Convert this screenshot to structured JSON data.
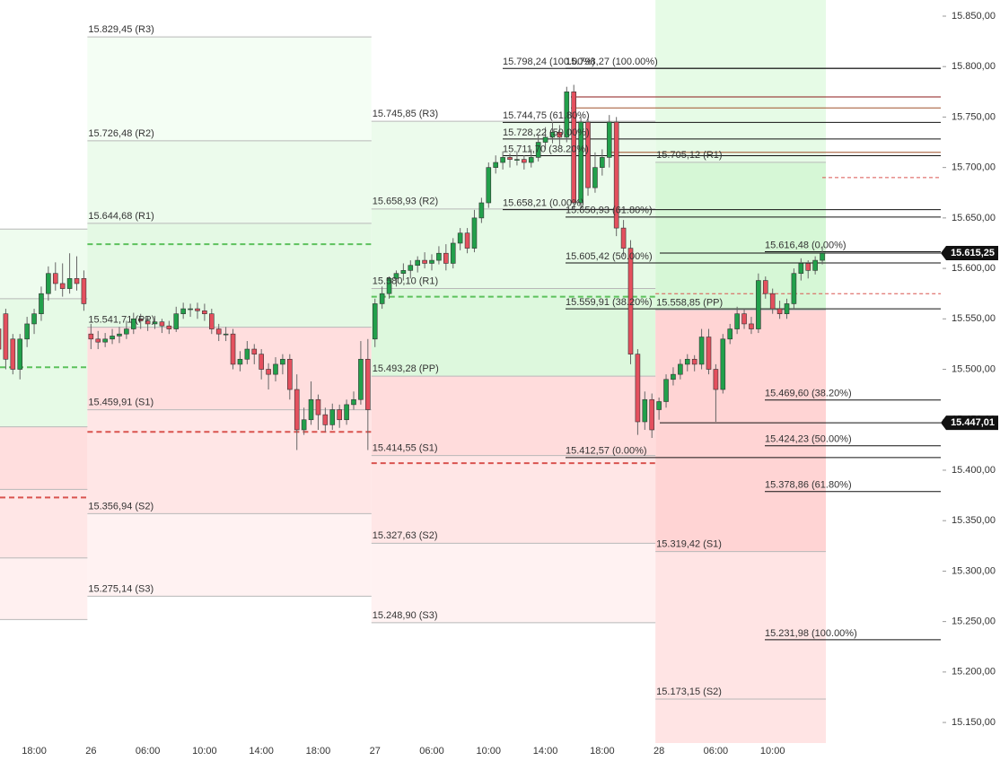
{
  "chart_data": {
    "type": "candlestick",
    "categories": [
      null,
      null,
      null,
      null,
      null,
      "18:00",
      null,
      null,
      null,
      null,
      null,
      null,
      null,
      "26",
      null,
      null,
      null,
      null,
      null,
      null,
      null,
      "06:00",
      null,
      null,
      null,
      null,
      null,
      null,
      null,
      "10:00",
      null,
      null,
      null,
      null,
      null,
      null,
      null,
      "14:00",
      null,
      null,
      null,
      null,
      null,
      null,
      null,
      "18:00",
      null,
      null,
      null,
      null,
      null,
      null,
      null,
      "27",
      null,
      null,
      null,
      null,
      null,
      null,
      null,
      "06:00",
      null,
      null,
      null,
      null,
      null,
      null,
      null,
      "10:00",
      null,
      null,
      null,
      null,
      null,
      null,
      null,
      "14:00",
      null,
      null,
      null,
      null,
      null,
      null,
      null,
      "18:00",
      null,
      null,
      null,
      null,
      null,
      null,
      null,
      "28",
      null,
      null,
      null,
      null,
      null,
      null,
      null,
      "06:00",
      null,
      null,
      null,
      null,
      null,
      null,
      null,
      "10:00",
      null,
      null,
      null,
      null,
      null,
      null,
      null
    ],
    "open": [
      15540,
      15555,
      15530,
      15500,
      15530,
      15545,
      15555,
      15575,
      15595,
      15585,
      15580,
      15590,
      15590,
      15535,
      15530,
      15527,
      15530,
      15533,
      15535,
      15540,
      15550,
      15548,
      15545,
      15547,
      15543,
      15540,
      15555,
      15560,
      15560,
      15558,
      15555,
      15540,
      15535,
      15535,
      15505,
      15510,
      15520,
      15515,
      15500,
      15495,
      15505,
      15510,
      15480,
      15440,
      15450,
      15470,
      15455,
      15445,
      15460,
      15450,
      15465,
      15470,
      15510,
      15530,
      15565,
      15575,
      15590,
      15595,
      15598,
      15603,
      15608,
      15605,
      15608,
      15615,
      15605,
      15625,
      15635,
      15620,
      15650,
      15665,
      15700,
      15705,
      15710,
      15708,
      15708,
      15705,
      15710,
      15725,
      15730,
      15735,
      15730,
      15775,
      15665,
      15745,
      15680,
      15700,
      15710,
      15745,
      15640,
      15620,
      15515,
      15448,
      15470,
      15460,
      15468,
      15490,
      15495,
      15505,
      15510,
      15505,
      15532,
      15500,
      15480,
      15530,
      15540,
      15555,
      15545,
      15540,
      15588,
      15575,
      15560,
      15555,
      15565,
      15595,
      15605,
      15598,
      15608
    ],
    "high": [
      15548,
      15560,
      15535,
      15535,
      15552,
      15560,
      15582,
      15602,
      15606,
      15605,
      15615,
      15612,
      15598,
      15545,
      15538,
      15536,
      15540,
      15542,
      15548,
      15556,
      15555,
      15552,
      15553,
      15550,
      15548,
      15562,
      15566,
      15565,
      15566,
      15565,
      15560,
      15545,
      15542,
      15540,
      15518,
      15528,
      15525,
      15520,
      15506,
      15512,
      15515,
      15515,
      15495,
      15462,
      15488,
      15475,
      15462,
      15466,
      15465,
      15470,
      15478,
      15528,
      15530,
      15570,
      15582,
      15592,
      15598,
      15605,
      15608,
      15612,
      15616,
      15614,
      15622,
      15624,
      15630,
      15640,
      15640,
      15658,
      15670,
      15705,
      15712,
      15716,
      15714,
      15716,
      15712,
      15718,
      15732,
      15740,
      15745,
      15742,
      15780,
      15782,
      15750,
      15750,
      15715,
      15718,
      15752,
      15750,
      15648,
      15628,
      15520,
      15478,
      15476,
      15472,
      15495,
      15502,
      15510,
      15515,
      15514,
      15540,
      15540,
      15505,
      15535,
      15545,
      15562,
      15560,
      15552,
      15595,
      15592,
      15580,
      15568,
      15570,
      15600,
      15610,
      15608,
      15612,
      15622
    ],
    "low": [
      15505,
      15500,
      15495,
      15490,
      15522,
      15535,
      15548,
      15568,
      15578,
      15572,
      15575,
      15578,
      15558,
      15520,
      15520,
      15522,
      15525,
      15526,
      15530,
      15535,
      15540,
      15538,
      15540,
      15536,
      15535,
      15537,
      15550,
      15552,
      15550,
      15548,
      15535,
      15528,
      15528,
      15500,
      15498,
      15505,
      15505,
      15490,
      15480,
      15488,
      15495,
      15470,
      15420,
      15435,
      15445,
      15440,
      15438,
      15440,
      15442,
      15445,
      15460,
      15465,
      15420,
      15522,
      15560,
      15570,
      15582,
      15588,
      15590,
      15596,
      15600,
      15598,
      15604,
      15598,
      15600,
      15618,
      15615,
      15616,
      15645,
      15660,
      15694,
      15698,
      15700,
      15702,
      15698,
      15700,
      15706,
      15718,
      15724,
      15722,
      15725,
      15658,
      15660,
      15672,
      15675,
      15692,
      15700,
      15632,
      15612,
      15505,
      15435,
      15440,
      15432,
      15450,
      15462,
      15484,
      15490,
      15498,
      15498,
      15500,
      15495,
      15448,
      15476,
      15525,
      15535,
      15540,
      15535,
      15536,
      15570,
      15555,
      15550,
      15550,
      15560,
      15588,
      15590,
      15594,
      15604
    ],
    "close": [
      15520,
      15510,
      15500,
      15530,
      15545,
      15555,
      15575,
      15595,
      15585,
      15580,
      15590,
      15585,
      15565,
      15530,
      15527,
      15530,
      15533,
      15535,
      15540,
      15550,
      15548,
      15545,
      15547,
      15543,
      15540,
      15555,
      15560,
      15560,
      15558,
      15555,
      15540,
      15535,
      15535,
      15505,
      15510,
      15520,
      15515,
      15500,
      15495,
      15505,
      15510,
      15480,
      15440,
      15450,
      15470,
      15455,
      15445,
      15460,
      15450,
      15465,
      15470,
      15510,
      15460,
      15565,
      15575,
      15590,
      15595,
      15598,
      15603,
      15608,
      15605,
      15608,
      15615,
      15605,
      15625,
      15635,
      15620,
      15650,
      15665,
      15700,
      15705,
      15710,
      15708,
      15708,
      15705,
      15710,
      15725,
      15730,
      15735,
      15730,
      15775,
      15665,
      15745,
      15680,
      15700,
      15710,
      15745,
      15640,
      15620,
      15515,
      15448,
      15470,
      15440,
      15468,
      15490,
      15495,
      15505,
      15510,
      15505,
      15532,
      15500,
      15480,
      15530,
      15540,
      15555,
      15545,
      15540,
      15588,
      15575,
      15560,
      15555,
      15565,
      15595,
      15605,
      15598,
      15608,
      15615
    ],
    "up_color": "#22a04b",
    "down_color": "#e4505e",
    "ylim": [
      15129.6,
      15866
    ],
    "yticks": [
      {
        "value": 15850,
        "label": "15.850,00"
      },
      {
        "value": 15800,
        "label": "15.800,00"
      },
      {
        "value": 15750,
        "label": "15.750,00"
      },
      {
        "value": 15700,
        "label": "15.700,00"
      },
      {
        "value": 15650,
        "label": "15.650,00"
      },
      {
        "value": 15600,
        "label": "15.600,00"
      },
      {
        "value": 15550,
        "label": "15.550,00"
      },
      {
        "value": 15500,
        "label": "15.500,00"
      },
      {
        "value": 15450,
        "label": "15.450,00"
      },
      {
        "value": 15400,
        "label": "15.400,00"
      },
      {
        "value": 15350,
        "label": "15.350,00"
      },
      {
        "value": 15300,
        "label": "15.300,00"
      },
      {
        "value": 15250,
        "label": "15.250,00"
      },
      {
        "value": 15200,
        "label": "15.200,00"
      },
      {
        "value": 15150,
        "label": "15.150,00"
      }
    ],
    "pivot_sessions": [
      {
        "values": [
          15639,
          15570,
          15443,
          15381,
          15313,
          15252
        ],
        "value_labels": [
          null,
          null,
          null,
          null,
          null,
          null
        ],
        "band_colors": [
          "#ffffff",
          "#eefcee",
          "#e6fae6",
          "#ffdede",
          "#ffe6e6",
          "#fff0f0",
          "#ffffff"
        ],
        "dashed_values": [
          15502,
          15373
        ],
        "dashed_colors": [
          "#5cc15c",
          "#d9534f"
        ]
      },
      {
        "values": [
          15829.45,
          15726.48,
          15644.68,
          15541.71,
          15459.91,
          15356.94,
          15275.14
        ],
        "value_labels": [
          "15.829,45 (R3)",
          "15.726,48 (R2)",
          "15.644,68 (R1)",
          "15.541,71 (PP)",
          "15.459,91 (S1)",
          "15.356,94 (S2)",
          "15.275,14 (S3)"
        ],
        "band_colors": [
          "#ffffff",
          "#f4fef4",
          "#ecfbec",
          "#e4f9e4",
          "#ffdede",
          "#ffe6e6",
          "#fff2f2",
          "#ffffff"
        ],
        "dashed_values": [
          15624,
          15438
        ],
        "dashed_colors": [
          "#5cc15c",
          "#d9534f"
        ]
      },
      {
        "values": [
          15745.85,
          15658.93,
          15580.1,
          15493.28,
          15414.55,
          15327.63,
          15248.9
        ],
        "value_labels": [
          "15.745,85 (R3)",
          "15.658,93 (R2)",
          "15.580,10 (R1)",
          "15.493,28 (PP)",
          "15.414,55 (S1)",
          "15.327,63 (S2)",
          "15.248,90 (S3)"
        ],
        "band_colors": [
          "#ffffff",
          "#ecfbec",
          "#e6fae6",
          "#ddf8dd",
          "#ffdcdc",
          "#ffe6e6",
          "#fff2f2",
          "#ffffff"
        ],
        "dashed_values": [
          15572,
          15407
        ],
        "dashed_colors": [
          "#5cc15c",
          "#d9534f"
        ]
      },
      {
        "values": [
          15705.12,
          15558.85,
          15319.42,
          15173.15
        ],
        "value_labels": [
          "15.705,12 (R1)",
          "15.558,85 (PP)",
          "15.319,42 (S1)",
          "15.173,15 (S2)"
        ],
        "band_colors": [
          "#e6fbe6",
          "#d6f7d6",
          "#ffd4d4",
          "#ffe4e4",
          "#ffe4e4"
        ],
        "dashed_values": [
          15575,
          15690
        ],
        "dashed_colors": [
          "#d9534f",
          "#d9534f"
        ]
      }
    ],
    "fibonacci": [
      {
        "values": [
          15798.24,
          15744.75,
          15728.22,
          15711.7,
          15658.21
        ],
        "value_labels": [
          "15.798,24 (100.00%)",
          "15.744,75 (61.80%)",
          "15.728,22 (50.00%)",
          "15.711,70 (38.20%)",
          "15.658,21 (0.00%)"
        ]
      },
      {
        "values": [
          15798.27,
          15650.93,
          15605.42,
          15559.91,
          15412.57
        ],
        "value_labels": [
          "15.798,27 (100.00%)",
          "15.650,93 (61.80%)",
          "15.605,42 (50.00%)",
          "15.559,91 (38.20%)",
          "15.412,57 (0.00%)"
        ]
      },
      {
        "values": [
          15616.48,
          15469.6,
          15424.23,
          15378.86,
          15231.98
        ],
        "value_labels": [
          "15.616,48 (0.00%)",
          "15.469,60 (38.20%)",
          "15.424,23 (50.00%)",
          "15.378,86 (61.80%)",
          "15.231,98 (100.00%)"
        ]
      }
    ],
    "extra_lines": {
      "values": [
        15770,
        15759,
        15715
      ],
      "colors": [
        "#8b1a1a",
        "#a0522d",
        "#a0522d"
      ]
    },
    "price_labels": {
      "values": [
        15615.25,
        15447.01
      ],
      "value_labels": [
        "15.615,25",
        "15.447,01"
      ]
    }
  }
}
